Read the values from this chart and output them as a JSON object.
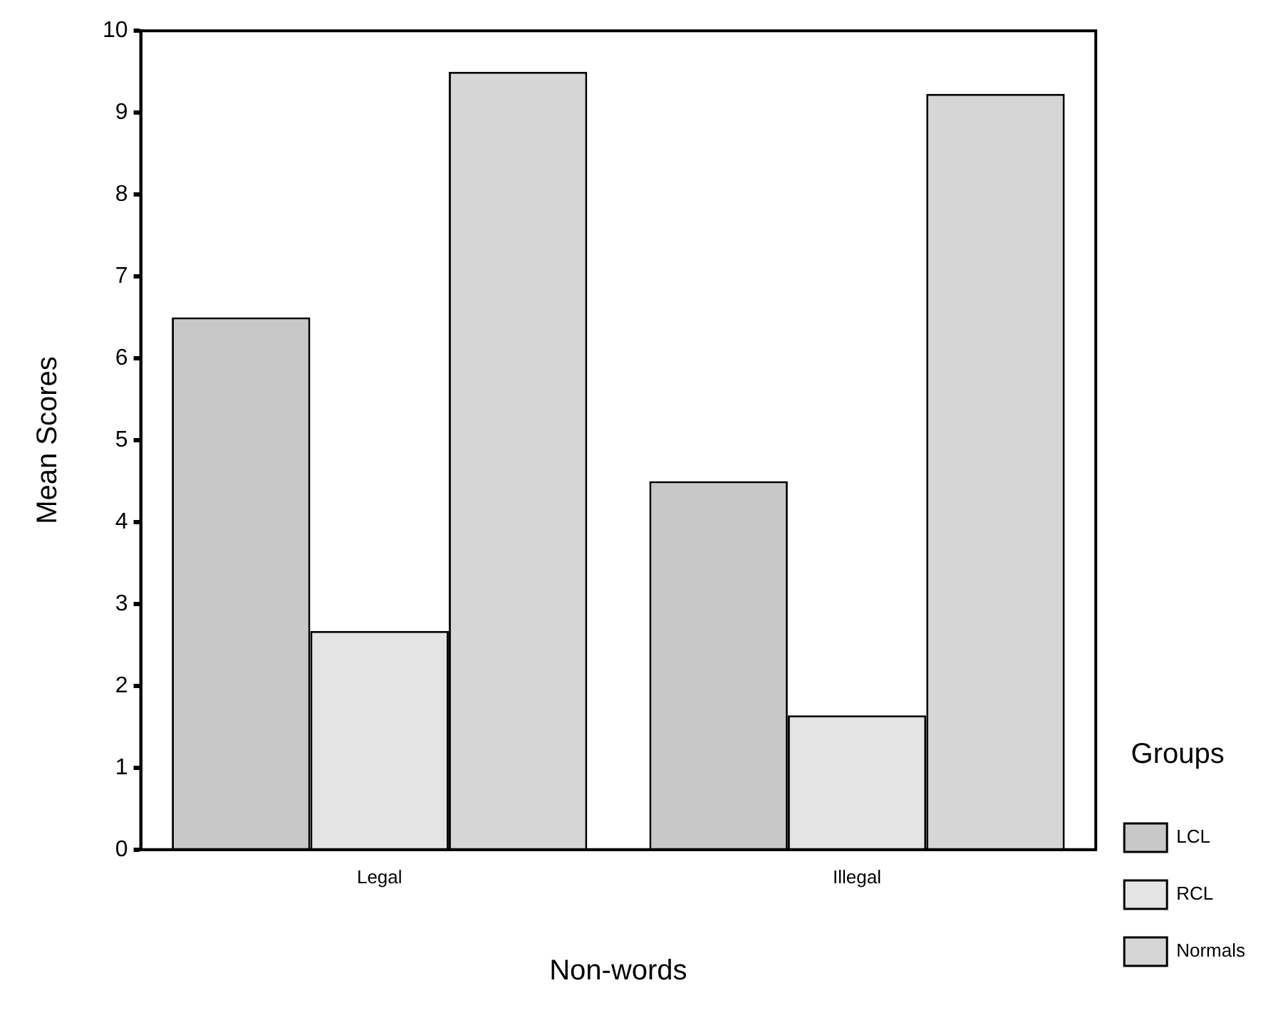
{
  "chart_data": {
    "type": "bar",
    "xlabel": "Non-words",
    "ylabel": "Mean Scores",
    "legend_title": "Groups",
    "categories": [
      "Legal",
      "Illegal"
    ],
    "series": [
      {
        "name": "LCL",
        "color": "#c8c8c8",
        "values": [
          6.5,
          4.5
        ]
      },
      {
        "name": "RCL",
        "color": "#e4e4e4",
        "values": [
          2.67,
          1.64
        ]
      },
      {
        "name": "Normals",
        "color": "#d6d6d6",
        "values": [
          9.5,
          9.23
        ]
      }
    ],
    "ylim": [
      0,
      10
    ],
    "yticks": [
      0,
      1,
      2,
      3,
      4,
      5,
      6,
      7,
      8,
      9,
      10
    ],
    "grid": false,
    "legend": "right"
  }
}
